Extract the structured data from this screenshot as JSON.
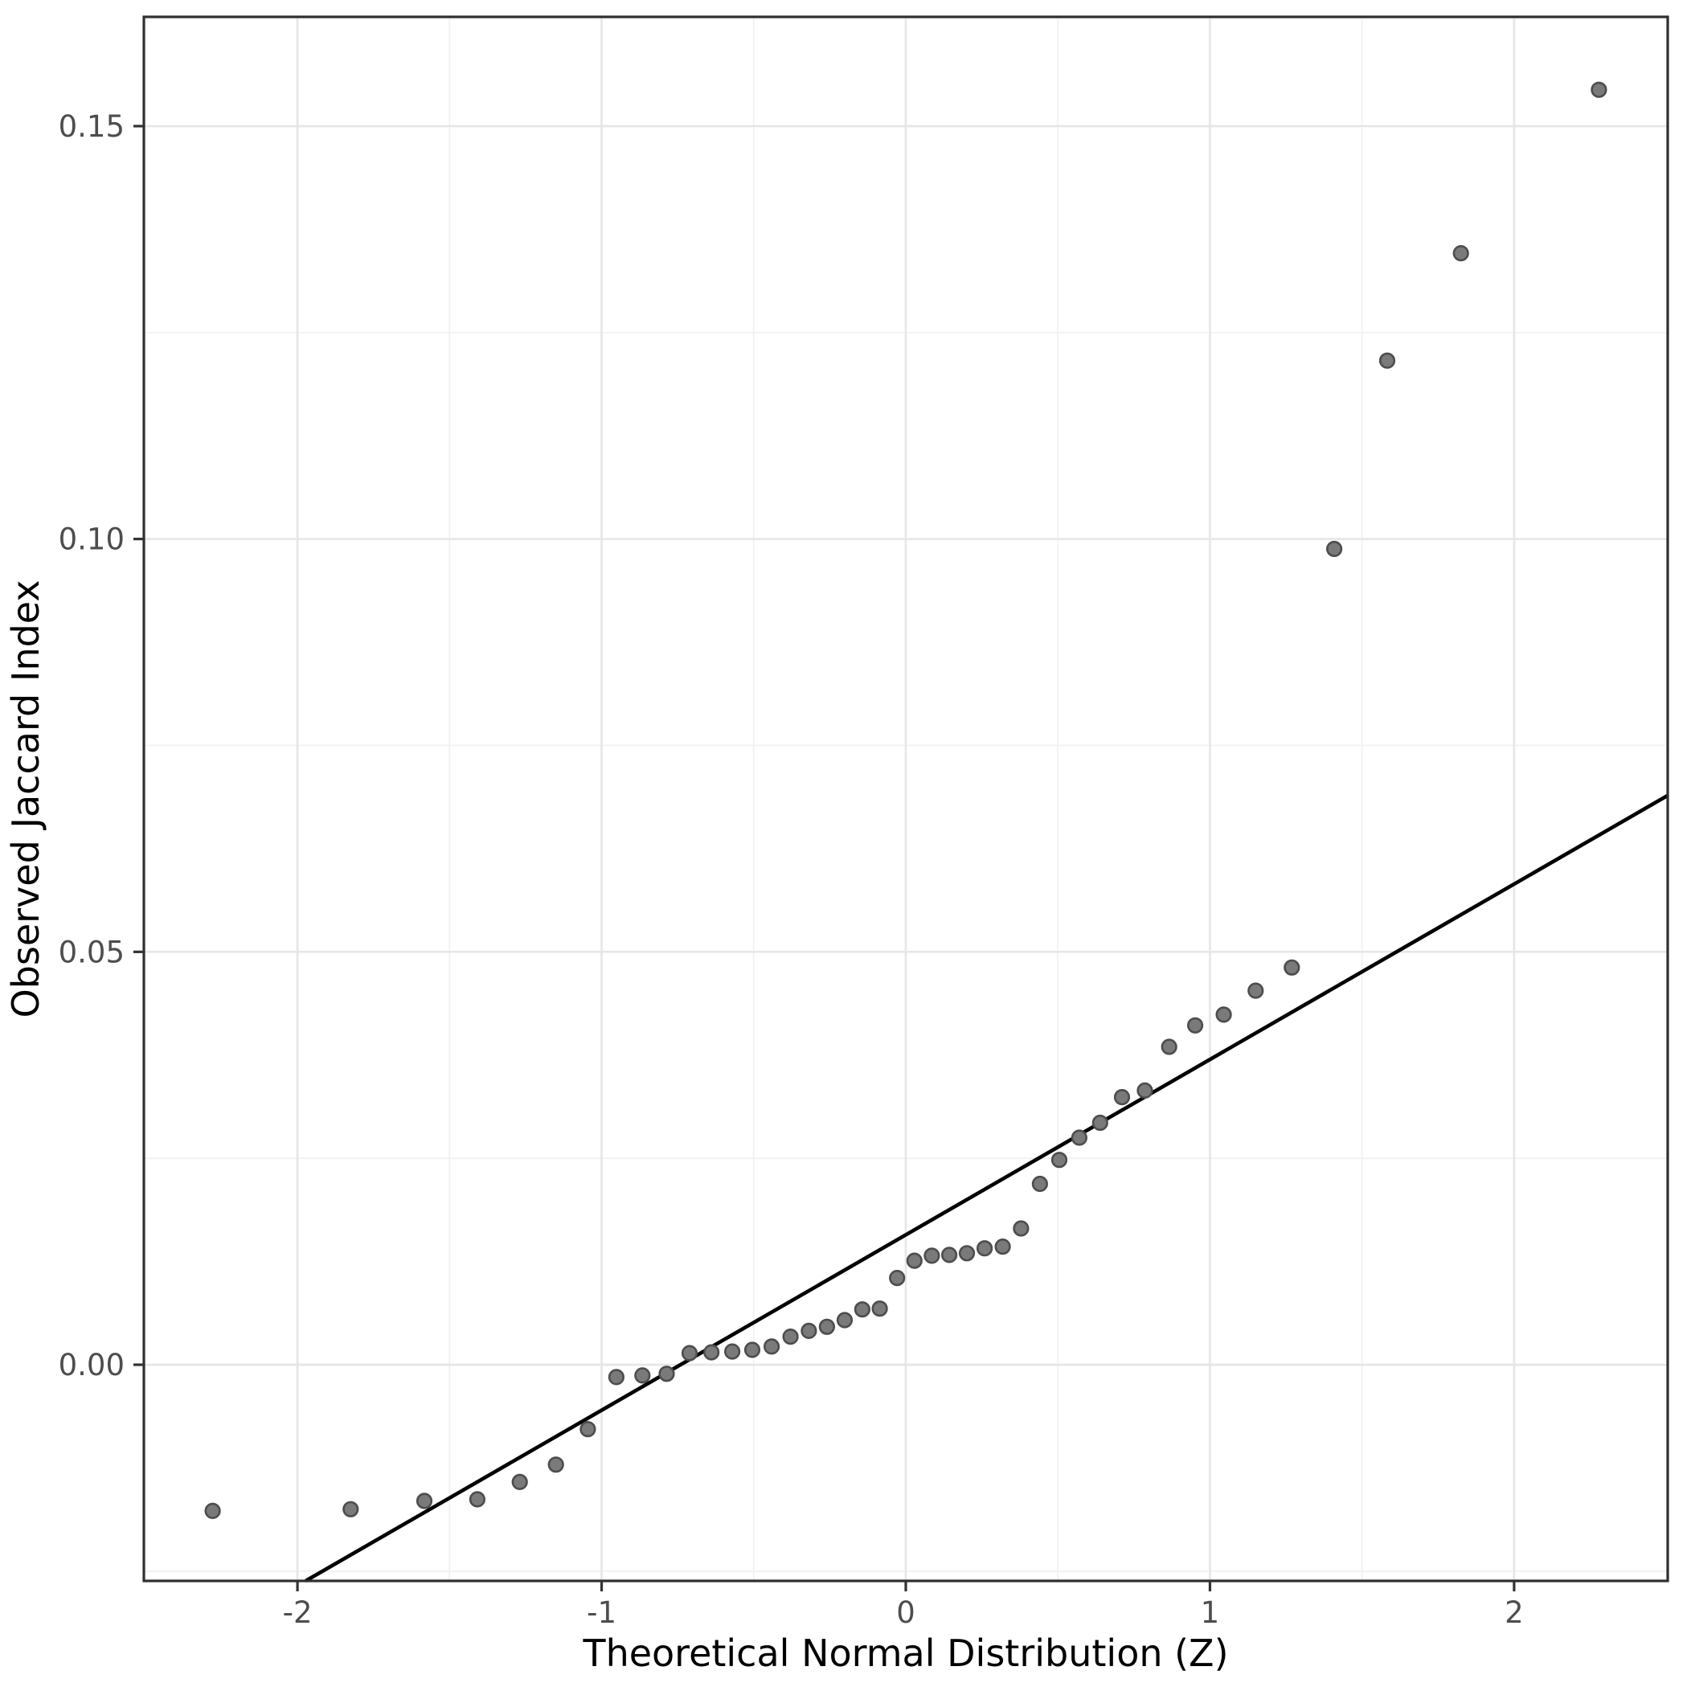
{
  "chart_data": {
    "type": "scatter",
    "title": "",
    "xlabel": "Theoretical Normal Distribution (Z)",
    "ylabel": "Observed Jaccard Index",
    "xlim": [
      -2.505,
      2.505
    ],
    "ylim": [
      -0.02618,
      0.16323
    ],
    "x_ticks": [
      -2,
      -1,
      0,
      1,
      2
    ],
    "x_tick_labels": [
      "-2",
      "-1",
      "0",
      "1",
      "2"
    ],
    "y_ticks": [
      0.0,
      0.05,
      0.1,
      0.15
    ],
    "y_tick_labels": [
      "0.00",
      "0.05",
      "0.10",
      "0.15"
    ],
    "x_minor_breaks": [
      -1.5,
      -0.5,
      0.5,
      1.5
    ],
    "y_minor_breaks": [
      -0.025,
      0.025,
      0.075,
      0.125
    ],
    "grid": true,
    "legend_position": "none",
    "reference_line": {
      "slope": 0.02124,
      "intercept": 0.01573
    },
    "series": [
      {
        "name": "observed-vs-theoretical-quantiles",
        "points": [
          [
            -2.2788,
            -0.0177
          ],
          [
            -1.825,
            -0.0175
          ],
          [
            -1.5828,
            -0.0165
          ],
          [
            -1.4087,
            -0.0163
          ],
          [
            -1.2692,
            -0.0142
          ],
          [
            -1.1503,
            -0.0121
          ],
          [
            -1.0454,
            -0.0078
          ],
          [
            -0.9514,
            -0.0015
          ],
          [
            -0.8659,
            -0.0013
          ],
          [
            -0.7862,
            -0.0011
          ],
          [
            -0.7109,
            0.0014
          ],
          [
            -0.639,
            0.0015
          ],
          [
            -0.5705,
            0.0016
          ],
          [
            -0.5046,
            0.0018
          ],
          [
            -0.441,
            0.0022
          ],
          [
            -0.379,
            0.0034
          ],
          [
            -0.3186,
            0.0041
          ],
          [
            -0.2593,
            0.0046
          ],
          [
            -0.2008,
            0.0054
          ],
          [
            -0.1429,
            0.0067
          ],
          [
            -0.0855,
            0.0068
          ],
          [
            -0.0285,
            0.0105
          ],
          [
            0.0285,
            0.0126
          ],
          [
            0.0855,
            0.0132
          ],
          [
            0.1429,
            0.0133
          ],
          [
            0.2008,
            0.0135
          ],
          [
            0.2593,
            0.0141
          ],
          [
            0.3186,
            0.0143
          ],
          [
            0.379,
            0.0165
          ],
          [
            0.441,
            0.0219
          ],
          [
            0.5046,
            0.0248
          ],
          [
            0.5705,
            0.0275
          ],
          [
            0.639,
            0.0293
          ],
          [
            0.7109,
            0.0324
          ],
          [
            0.7862,
            0.0332
          ],
          [
            0.8659,
            0.0385
          ],
          [
            0.9514,
            0.0411
          ],
          [
            1.0454,
            0.0424
          ],
          [
            1.1503,
            0.0453
          ],
          [
            1.2692,
            0.0481
          ],
          [
            1.4087,
            0.0988
          ],
          [
            1.5828,
            0.1216
          ],
          [
            1.825,
            0.1346
          ],
          [
            2.2788,
            0.1544
          ]
        ]
      }
    ],
    "colors": {
      "background": "#ffffff",
      "panel_background": "#ffffff",
      "panel_border": "#2f2f2f",
      "grid_major": "#e6e6e6",
      "grid_minor": "#f1f1f1",
      "point_fill": "#7a7a7a",
      "point_stroke": "#4d4d4d",
      "reference_line": "#000000",
      "tick_mark": "#333333",
      "tick_label": "#4d4d4d",
      "axis_title": "#000000"
    }
  }
}
